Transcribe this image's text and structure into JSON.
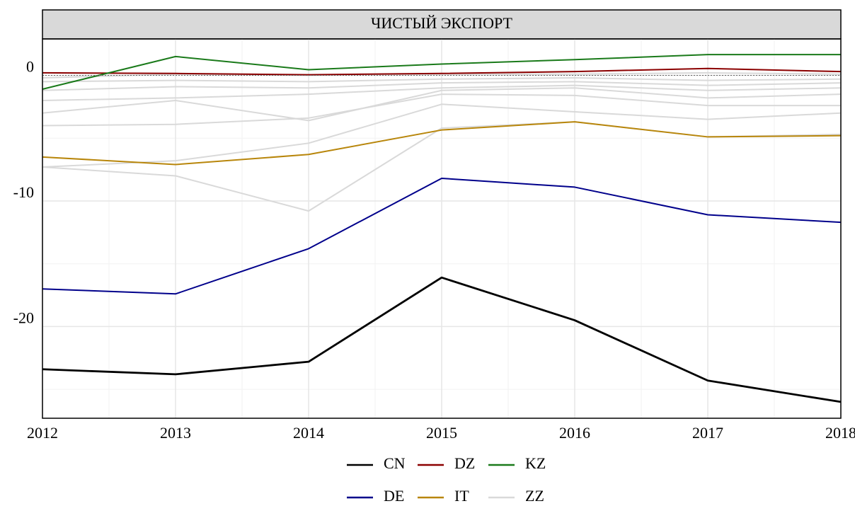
{
  "chart_data": {
    "type": "line",
    "title": "ЧИСТЫЙ ЭКСПОРТ",
    "x": [
      2012,
      2013,
      2014,
      2015,
      2016,
      2017,
      2018
    ],
    "xlim": [
      2012,
      2018
    ],
    "xticks": [
      2012,
      2013,
      2014,
      2015,
      2016,
      2017,
      2018
    ],
    "xminor": [
      2012.5,
      2013.5,
      2014.5,
      2015.5,
      2016.5,
      2017.5
    ],
    "ylim": [
      -27.3,
      2.9
    ],
    "yticks": [
      -20,
      -10,
      0
    ],
    "yminor": [
      -25,
      -15,
      -5
    ],
    "hline": 0,
    "grid": true,
    "series": [
      {
        "name": "CN",
        "color": "#000000",
        "values": [
          -23.4,
          -23.8,
          -22.8,
          -16.1,
          -19.5,
          -24.3,
          -26.0
        ]
      },
      {
        "name": "DZ",
        "color": "#8b0000",
        "values": [
          0.2,
          0.15,
          0.05,
          0.15,
          0.3,
          0.55,
          0.3
        ]
      },
      {
        "name": "KZ",
        "color": "#1a7a1a",
        "values": [
          -1.1,
          1.5,
          0.45,
          0.9,
          1.25,
          1.65,
          1.65
        ]
      },
      {
        "name": "DE",
        "color": "#00008b",
        "values": [
          -17.0,
          -17.4,
          -13.8,
          -8.2,
          -8.9,
          -11.1,
          -11.7
        ]
      },
      {
        "name": "IT",
        "color": "#b8860b",
        "values": [
          -6.5,
          -7.1,
          -6.3,
          -4.35,
          -3.7,
          -4.9,
          -4.8
        ]
      },
      {
        "name": "ZZ",
        "color": "#d9d9d9",
        "values": [
          -7.3,
          -8.0,
          -10.8,
          -4.2,
          -3.7,
          -4.9,
          -4.7
        ]
      },
      {
        "name": "ZZ",
        "color": "#d9d9d9",
        "values": [
          -7.3,
          -6.8,
          -5.4,
          -2.3,
          -2.9,
          -3.5,
          -3.0
        ]
      },
      {
        "name": "ZZ",
        "color": "#d9d9d9",
        "values": [
          -4.0,
          -3.9,
          -3.4,
          -1.5,
          -1.6,
          -2.4,
          -2.4
        ]
      },
      {
        "name": "ZZ",
        "color": "#d9d9d9",
        "values": [
          -3.0,
          -2.0,
          -3.6,
          -1.2,
          -1.0,
          -1.8,
          -1.5
        ]
      },
      {
        "name": "ZZ",
        "color": "#d9d9d9",
        "values": [
          -2.0,
          -1.8,
          -1.5,
          -1.0,
          -0.8,
          -1.2,
          -1.0
        ]
      },
      {
        "name": "ZZ",
        "color": "#d9d9d9",
        "values": [
          -1.2,
          -0.9,
          -1.0,
          -0.6,
          -0.5,
          -0.8,
          -0.6
        ]
      },
      {
        "name": "ZZ",
        "color": "#d9d9d9",
        "values": [
          -0.5,
          -0.4,
          -0.5,
          -0.3,
          -0.2,
          -0.4,
          -0.3
        ]
      },
      {
        "name": "ZZ",
        "color": "#d9d9d9",
        "values": [
          -0.2,
          0.1,
          0,
          0.1,
          0.1,
          0.2,
          0.1
        ]
      }
    ]
  }
}
